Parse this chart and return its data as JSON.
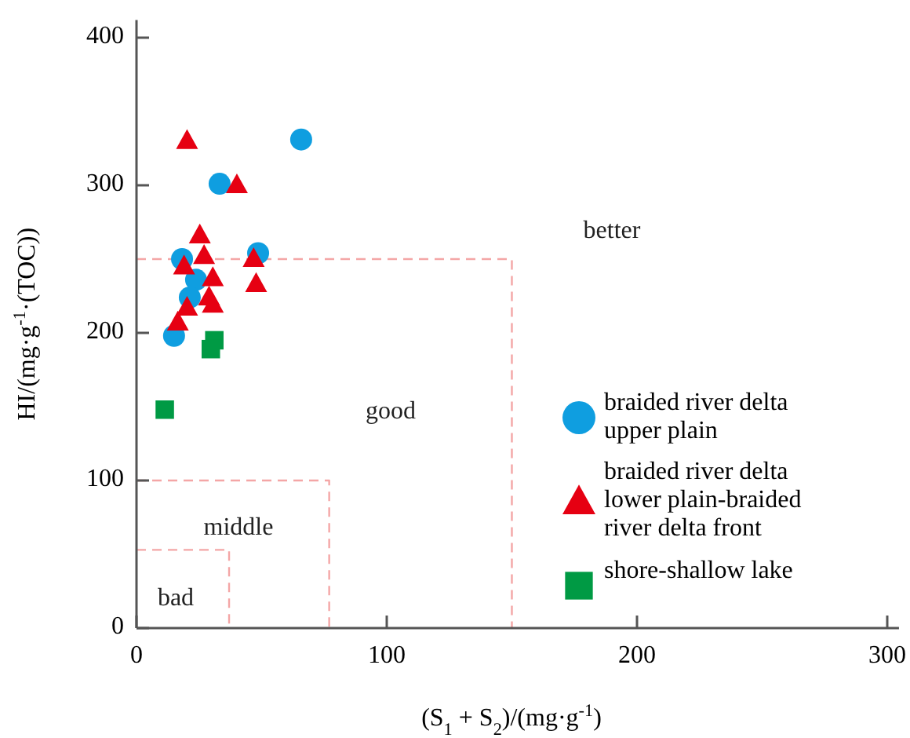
{
  "chart_data": {
    "type": "scatter",
    "xlabel": "(S$_{1}$ + S$_{2}$)/(mg·g$^{-1}$)",
    "ylabel": "HI/(mg·g$^{-1}$·(TOC))",
    "xlim": [
      0,
      305
    ],
    "ylim": [
      0,
      412
    ],
    "xticks": [
      0,
      100,
      200,
      300
    ],
    "yticks": [
      0,
      100,
      200,
      300,
      400
    ],
    "grid": false,
    "legend": "right",
    "series": [
      {
        "name": "braided river delta upper plain",
        "color": "#0f9ee0",
        "marker": "circle",
        "x": [
          65.8,
          33.2,
          18.2,
          48.6,
          23.8,
          21.3,
          15
        ],
        "values": [
          331,
          301,
          250,
          254,
          236,
          224,
          198
        ]
      },
      {
        "name": "braided river delta lower plain-braided river delta front",
        "color": "#e60012",
        "marker": "triangle",
        "x": [
          20.2,
          40.1,
          25.3,
          27,
          19,
          46.8,
          30.5,
          47.8,
          29,
          30.5,
          20.2,
          16.5
        ],
        "values": [
          330,
          300,
          266,
          252,
          245,
          250,
          237,
          233,
          224,
          219,
          217,
          207
        ]
      },
      {
        "name": "shore-shallow lake",
        "color": "#009a44",
        "marker": "square",
        "x": [
          31.1,
          29.7,
          11.3
        ],
        "values": [
          195,
          189,
          148
        ]
      },
      {
        "type": "line",
        "color": "#f4a6a6",
        "line_style": "dashed",
        "marker": "none",
        "x": [
          0,
          150,
          150
        ],
        "values": [
          250,
          250,
          0
        ]
      },
      {
        "type": "line",
        "color": "#f4a6a6",
        "line_style": "dashed",
        "marker": "none",
        "x": [
          0,
          77,
          77
        ],
        "values": [
          100,
          100,
          0
        ]
      },
      {
        "type": "line",
        "color": "#f4a6a6",
        "line_style": "dashed",
        "marker": "none",
        "x": [
          0,
          37,
          37
        ],
        "values": [
          53,
          53,
          0
        ]
      }
    ],
    "annotations": [
      "better",
      "good",
      "middle",
      "bad"
    ]
  }
}
